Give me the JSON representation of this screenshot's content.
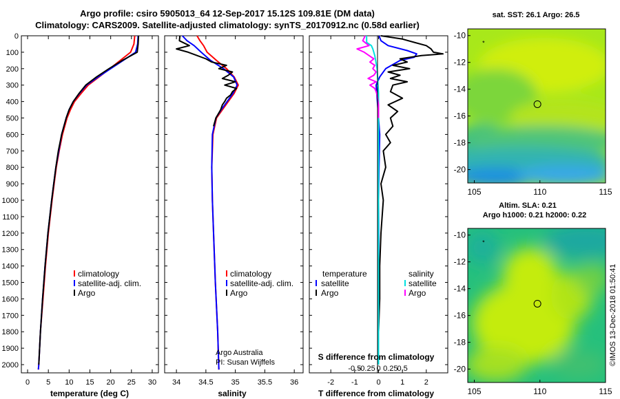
{
  "header": {
    "title1": "Argo profile: csiro 5905013_64 12-Sep-2017 15.12S 109.81E (DM data)",
    "title2": "Climatology: CARS2009. Satellite-adjusted climatology: synTS_20170912.nc (0.58d earlier)"
  },
  "colors": {
    "climatology": "#ff0000",
    "satellite": "#0000ff",
    "argo": "#000000",
    "sat_salinity": "#00e0e0",
    "argo_salinity": "#ff00ff"
  },
  "chart_data": [
    {
      "type": "line",
      "id": "temperature",
      "xlabel": "temperature (deg C)",
      "xlim": [
        -1.5,
        31.5
      ],
      "xticks": [
        0,
        5,
        10,
        15,
        20,
        25,
        30
      ],
      "xtick_labels": [
        "0",
        "5",
        "10",
        "15",
        "20",
        "25",
        "30"
      ],
      "ylim": [
        2050,
        0
      ],
      "yticks": [
        0,
        100,
        200,
        300,
        400,
        500,
        600,
        700,
        800,
        900,
        1000,
        1100,
        1200,
        1300,
        1400,
        1500,
        1600,
        1700,
        1800,
        1900,
        2000
      ],
      "legend": [
        "climatology",
        "satellite-adj. clim.",
        "Argo"
      ],
      "series": [
        {
          "name": "climatology",
          "color": "#ff0000",
          "depth": [
            0,
            50,
            100,
            150,
            200,
            250,
            300,
            350,
            400,
            450,
            500,
            600,
            700,
            800,
            900,
            1000,
            1200,
            1400,
            1600,
            1800,
            2000,
            2030
          ],
          "values": [
            25.8,
            25.6,
            24.8,
            22.3,
            19.8,
            17.2,
            14.6,
            12.9,
            11.3,
            10.3,
            9.5,
            8.4,
            7.6,
            6.9,
            6.4,
            5.9,
            5.0,
            4.3,
            3.7,
            3.1,
            2.7,
            2.6
          ]
        },
        {
          "name": "satellite-adj. clim.",
          "color": "#0000ff",
          "depth": [
            0,
            50,
            100,
            150,
            200,
            250,
            300,
            350,
            400,
            450,
            500,
            600,
            700,
            800,
            900,
            1000,
            1200,
            1400,
            1600,
            1800,
            2000,
            2030
          ],
          "values": [
            26.6,
            26.5,
            26.0,
            23.0,
            20.0,
            17.0,
            14.2,
            12.5,
            11.0,
            10.0,
            9.3,
            8.2,
            7.5,
            6.8,
            6.3,
            5.8,
            4.9,
            4.2,
            3.6,
            3.1,
            2.7,
            2.6
          ]
        },
        {
          "name": "Argo",
          "color": "#000000",
          "depth": [
            0,
            50,
            100,
            150,
            200,
            250,
            300,
            350,
            400,
            450,
            500,
            600,
            700,
            800,
            900,
            1000,
            1200,
            1400,
            1600,
            1800,
            2000
          ],
          "values": [
            26.7,
            26.6,
            26.4,
            22.8,
            19.6,
            16.6,
            14.0,
            12.4,
            11.0,
            10.0,
            9.3,
            8.2,
            7.4,
            6.8,
            6.3,
            5.8,
            4.9,
            4.2,
            3.6,
            3.1,
            2.7
          ]
        }
      ]
    },
    {
      "type": "line",
      "id": "salinity",
      "xlabel": "salinity",
      "xlim": [
        33.8,
        36.15
      ],
      "xticks": [
        34,
        34.5,
        35,
        35.5,
        36
      ],
      "xtick_labels": [
        "34",
        "34.5",
        "35",
        "35.5",
        "36"
      ],
      "ylim": [
        2050,
        0
      ],
      "legend": [
        "climatology",
        "satellite-adj. clim.",
        "Argo"
      ],
      "credit": [
        "Argo Australia",
        "PI: Susan Wijffels"
      ],
      "series": [
        {
          "name": "climatology",
          "color": "#ff0000",
          "depth": [
            0,
            30,
            60,
            100,
            150,
            200,
            250,
            300,
            350,
            400,
            450,
            500,
            600,
            800,
            1000,
            1200,
            1500,
            1800,
            2030
          ],
          "values": [
            34.35,
            34.4,
            34.46,
            34.52,
            34.68,
            34.85,
            34.98,
            35.05,
            34.98,
            34.88,
            34.78,
            34.68,
            34.62,
            34.6,
            34.61,
            34.63,
            34.66,
            34.7,
            34.72
          ]
        },
        {
          "name": "satellite-adj. clim.",
          "color": "#0000ff",
          "depth": [
            0,
            30,
            60,
            100,
            150,
            200,
            250,
            300,
            350,
            400,
            450,
            500,
            600,
            800,
            1000,
            1200,
            1500,
            1800,
            2030
          ],
          "values": [
            34.1,
            34.18,
            34.3,
            34.42,
            34.58,
            34.8,
            34.97,
            35.03,
            34.96,
            34.86,
            34.76,
            34.67,
            34.61,
            34.6,
            34.61,
            34.63,
            34.66,
            34.7,
            34.72
          ]
        },
        {
          "name": "Argo",
          "color": "#000000",
          "depth": [
            0,
            30,
            60,
            80,
            100,
            120,
            140,
            160,
            180,
            200,
            220,
            240,
            260,
            280,
            300,
            320,
            340,
            360,
            380,
            400,
            420,
            450,
            500,
            550
          ],
          "values": [
            34.06,
            34.05,
            34.22,
            34.0,
            34.2,
            34.35,
            34.5,
            34.6,
            34.85,
            34.72,
            34.95,
            34.88,
            34.78,
            35.0,
            34.82,
            35.02,
            34.95,
            34.92,
            34.85,
            34.82,
            34.78,
            34.75,
            34.67,
            34.63
          ]
        }
      ]
    },
    {
      "type": "line",
      "id": "difference",
      "xlabel": "T difference from climatology",
      "xlabel2": "S difference from climatology",
      "xlim": [
        -2.9,
        2.9
      ],
      "xticks": [
        -2,
        -1,
        0,
        1,
        2
      ],
      "xtick_labels": [
        "-2",
        "-1",
        "0",
        "1",
        "2"
      ],
      "xticks2": [
        -0.5,
        -0.25,
        0,
        0.25,
        0.5
      ],
      "xtick_labels2": [
        "-0.5",
        "-0.25",
        "0",
        "0.25",
        "0.5"
      ],
      "s_scale": 2.0,
      "ylim": [
        2050,
        0
      ],
      "legend_left": [
        "temperature",
        "satellite",
        "Argo"
      ],
      "legend_right": [
        "salinity",
        "satellite",
        "Argo"
      ],
      "series": [
        {
          "name": "temperature satellite",
          "color": "#0000ff",
          "kind": "T",
          "depth": [
            0,
            30,
            60,
            90,
            110,
            130,
            150,
            200,
            250,
            300,
            400,
            500,
            600,
            800,
            1000,
            1200,
            1500,
            1800,
            2000
          ],
          "values": [
            0.02,
            0.1,
            0.4,
            1.2,
            1.6,
            1.5,
            0.9,
            0.3,
            0.05,
            -0.1,
            -0.05,
            0.0,
            0.05,
            0.02,
            0.0,
            0.01,
            0.0,
            0.0,
            0.0
          ]
        },
        {
          "name": "temperature Argo",
          "color": "#000000",
          "kind": "T",
          "depth": [
            0,
            20,
            40,
            60,
            80,
            100,
            110,
            120,
            140,
            160,
            180,
            200,
            220,
            240,
            260,
            280,
            300,
            340,
            380,
            420,
            460,
            500,
            550,
            600,
            650,
            700,
            800,
            900,
            1000,
            1200,
            1400,
            1600,
            1800,
            2000
          ],
          "values": [
            0.1,
            1.0,
            1.5,
            2.0,
            2.2,
            2.3,
            2.7,
            1.8,
            0.9,
            1.2,
            0.6,
            1.3,
            0.4,
            0.9,
            0.5,
            1.2,
            0.6,
            0.5,
            1.0,
            0.4,
            0.8,
            0.5,
            0.6,
            0.3,
            0.5,
            0.2,
            0.3,
            0.1,
            0.2,
            0.1,
            0.05,
            0.05,
            0.0,
            0.0
          ]
        },
        {
          "name": "salinity satellite",
          "color": "#00e0e0",
          "kind": "S",
          "depth": [
            0,
            40,
            60,
            80,
            100,
            120,
            150,
            200,
            250,
            300,
            350,
            400,
            450,
            500,
            600,
            800,
            1000,
            1500,
            2000
          ],
          "values": [
            -0.25,
            -0.25,
            -0.15,
            -0.12,
            -0.1,
            -0.08,
            -0.06,
            -0.03,
            -0.02,
            -0.01,
            0.0,
            0.0,
            0.0,
            0.0,
            0.0,
            0.0,
            0.0,
            0.0,
            0.0
          ]
        },
        {
          "name": "salinity Argo",
          "color": "#ff00ff",
          "kind": "S",
          "depth": [
            0,
            30,
            60,
            80,
            100,
            120,
            140,
            160,
            180,
            200,
            220,
            240,
            260,
            280,
            300,
            320,
            340,
            360,
            380,
            400,
            420,
            450,
            500
          ],
          "values": [
            -0.28,
            -0.33,
            -0.2,
            -0.45,
            -0.3,
            -0.2,
            -0.1,
            -0.18,
            -0.08,
            -0.12,
            -0.05,
            -0.1,
            -0.22,
            -0.05,
            -0.18,
            -0.08,
            -0.05,
            -0.03,
            -0.02,
            -0.01,
            0.0,
            0.0,
            0.0
          ]
        }
      ]
    },
    {
      "type": "heatmap",
      "id": "sst-map",
      "title": "sat. SST: 26.1 Argo: 26.5",
      "xlim": [
        104.5,
        115
      ],
      "ylim": [
        -21,
        -9.5
      ],
      "xticks": [
        105,
        110,
        115
      ],
      "xtick_labels": [
        "105",
        "110",
        "115"
      ],
      "yticks": [
        -10,
        -12,
        -14,
        -16,
        -18,
        -20
      ],
      "ytick_labels": [
        "-10",
        "-12",
        "-14",
        "-16",
        "-18",
        "-20"
      ],
      "argo_position": [
        109.81,
        -15.12
      ],
      "marker": [
        105.7,
        -10.5
      ]
    },
    {
      "type": "heatmap",
      "id": "sla-map",
      "title": "Altim. SLA: 0.21",
      "subtitle": "Argo h1000: 0.21 h2000: 0.22",
      "xlim": [
        104.5,
        115
      ],
      "ylim": [
        -21,
        -9.5
      ],
      "xticks": [
        105,
        110,
        115
      ],
      "xtick_labels": [
        "105",
        "110",
        "115"
      ],
      "yticks": [
        -10,
        -12,
        -14,
        -16,
        -18,
        -20
      ],
      "ytick_labels": [
        "-10",
        "-12",
        "-14",
        "-16",
        "-18",
        "-20"
      ],
      "argo_position": [
        109.81,
        -15.12
      ],
      "marker": [
        105.7,
        -10.5
      ]
    }
  ],
  "footer": {
    "credit": "©IMOS 13-Dec-2018 01:50:41"
  }
}
